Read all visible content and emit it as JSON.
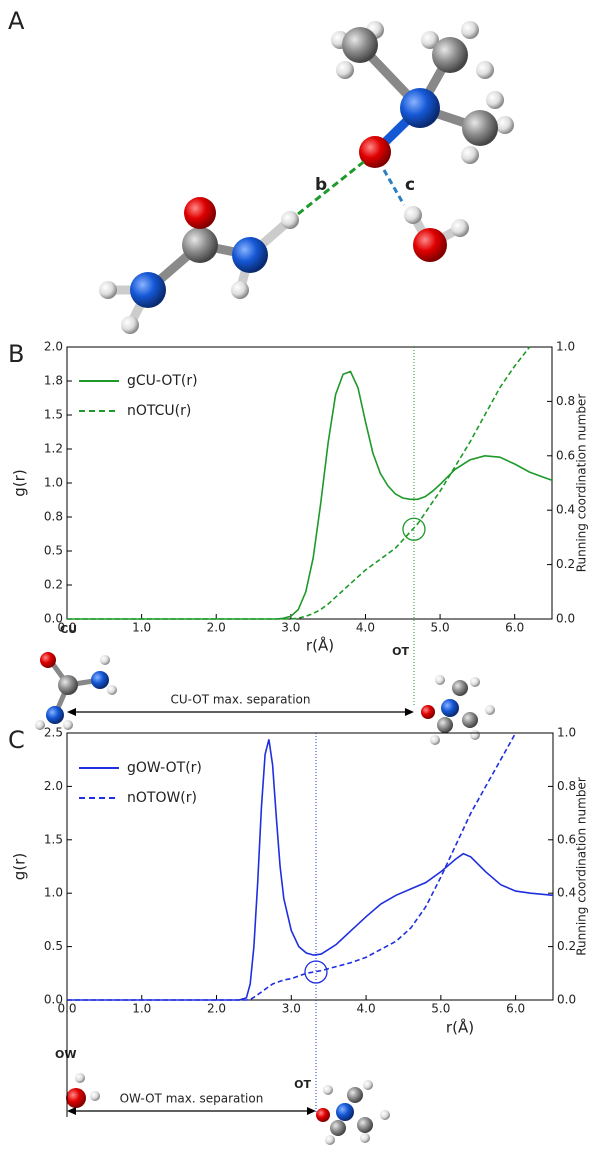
{
  "panel_a": {
    "label": "A",
    "bond_labels": [
      "b",
      "c"
    ]
  },
  "chart_data": [
    {
      "type": "line",
      "panel_label": "B",
      "xlabel": "r(Å)",
      "ylabel": "g(r)",
      "y2label": "Running coordination number",
      "x": [
        0,
        1,
        2,
        2.8,
        2.9,
        3.0,
        3.1,
        3.2,
        3.3,
        3.4,
        3.5,
        3.6,
        3.7,
        3.8,
        3.9,
        4.0,
        4.1,
        4.2,
        4.3,
        4.4,
        4.5,
        4.6,
        4.7,
        4.8,
        4.9,
        5.0,
        5.2,
        5.4,
        5.6,
        5.8,
        6.0,
        6.2,
        6.4,
        6.5
      ],
      "series": [
        {
          "name": "gCU-OT(r)",
          "color": "#1e9a2a",
          "dash": false,
          "values": [
            0,
            0,
            0,
            0,
            0.005,
            0.02,
            0.07,
            0.2,
            0.45,
            0.85,
            1.3,
            1.65,
            1.8,
            1.82,
            1.7,
            1.45,
            1.22,
            1.07,
            0.98,
            0.92,
            0.89,
            0.88,
            0.88,
            0.9,
            0.94,
            0.99,
            1.1,
            1.17,
            1.2,
            1.19,
            1.14,
            1.08,
            1.04,
            1.02
          ]
        },
        {
          "name": "nOTCU(r)",
          "color": "#1e9a2a",
          "dash": true,
          "axis": "y2",
          "values": [
            0,
            0,
            0,
            0,
            0,
            0,
            0.003,
            0.01,
            0.02,
            0.035,
            0.055,
            0.08,
            0.105,
            0.13,
            0.155,
            0.18,
            0.2,
            0.22,
            0.24,
            0.26,
            0.29,
            0.32,
            0.35,
            0.39,
            0.43,
            0.47,
            0.56,
            0.65,
            0.75,
            0.85,
            0.93,
            1.0,
            null,
            null
          ]
        }
      ],
      "xlim": [
        0,
        6.5
      ],
      "xticks": [
        {
          "value": 0,
          "label": "0.0"
        },
        {
          "value": 1,
          "label": "1.0"
        },
        {
          "value": 2,
          "label": "2.0"
        },
        {
          "value": 3,
          "label": "3.0"
        },
        {
          "value": 4,
          "label": "4.0"
        },
        {
          "value": 5,
          "label": "5.0"
        },
        {
          "value": 6,
          "label": "6.0"
        }
      ],
      "ylim": [
        0,
        2
      ],
      "yticks": [
        {
          "value": 0,
          "label": "0.0"
        },
        {
          "value": 0.25,
          "label": "0.2"
        },
        {
          "value": 0.5,
          "label": "0.5"
        },
        {
          "value": 0.75,
          "label": "0.8"
        },
        {
          "value": 1,
          "label": "1.0"
        },
        {
          "value": 1.25,
          "label": "1.2"
        },
        {
          "value": 1.5,
          "label": "1.5"
        },
        {
          "value": 1.75,
          "label": "1.8"
        },
        {
          "value": 2,
          "label": "2.0"
        }
      ],
      "y2lim": [
        0,
        1
      ],
      "y2ticks": [
        {
          "value": 0,
          "label": "0.0"
        },
        0.2,
        0.4,
        0.6,
        0.8,
        {
          "value": 1,
          "label": "1.0"
        }
      ],
      "marker": {
        "x": 4.65,
        "y2": 0.33
      },
      "annotations": [
        "CU",
        "OT",
        "CU-OT max. separation"
      ]
    },
    {
      "type": "line",
      "panel_label": "C",
      "xlabel": "r(Å)",
      "ylabel": "g(r)",
      "y2label": "Running coordination number",
      "x": [
        0,
        1,
        2,
        2.3,
        2.4,
        2.45,
        2.5,
        2.55,
        2.6,
        2.65,
        2.7,
        2.75,
        2.8,
        2.85,
        2.9,
        3.0,
        3.1,
        3.2,
        3.3,
        3.4,
        3.6,
        3.8,
        4.0,
        4.2,
        4.4,
        4.6,
        4.8,
        5.0,
        5.2,
        5.3,
        5.4,
        5.6,
        5.8,
        6.0,
        6.2,
        6.5
      ],
      "series": [
        {
          "name": "gOW-OT(r)",
          "color": "#1f2fe0",
          "dash": false,
          "values": [
            0,
            0,
            0,
            0,
            0.02,
            0.15,
            0.5,
            1.1,
            1.8,
            2.3,
            2.44,
            2.2,
            1.7,
            1.25,
            0.95,
            0.65,
            0.5,
            0.44,
            0.42,
            0.43,
            0.52,
            0.65,
            0.78,
            0.9,
            0.98,
            1.04,
            1.1,
            1.2,
            1.32,
            1.37,
            1.34,
            1.2,
            1.08,
            1.02,
            1.0,
            0.98
          ]
        },
        {
          "name": "nOTOW(r)",
          "color": "#1f2fe0",
          "dash": true,
          "axis": "y2",
          "values": [
            0,
            0,
            0,
            0,
            0,
            0.002,
            0.01,
            0.02,
            0.03,
            0.04,
            0.05,
            0.06,
            0.065,
            0.07,
            0.075,
            0.08,
            0.09,
            0.1,
            0.105,
            0.11,
            0.125,
            0.14,
            0.16,
            0.19,
            0.22,
            0.27,
            0.35,
            0.46,
            0.58,
            0.64,
            0.7,
            0.8,
            0.9,
            1.0,
            null,
            null
          ]
        }
      ],
      "xlim": [
        0,
        6.5
      ],
      "xticks": [
        {
          "value": 0,
          "label": "0.0"
        },
        {
          "value": 1,
          "label": "1.0"
        },
        {
          "value": 2,
          "label": "2.0"
        },
        {
          "value": 3,
          "label": "3.0"
        },
        {
          "value": 4,
          "label": "4.0"
        },
        {
          "value": 5,
          "label": "5.0"
        },
        {
          "value": 6,
          "label": "6.0"
        }
      ],
      "ylim": [
        0,
        2.5
      ],
      "yticks": [
        {
          "value": 0,
          "label": "0.0"
        },
        0.5,
        {
          "value": 1,
          "label": "1.0"
        },
        1.5,
        {
          "value": 2,
          "label": "2.0"
        },
        2.5
      ],
      "y2lim": [
        0,
        1
      ],
      "y2ticks": [
        {
          "value": 0,
          "label": "0.0"
        },
        0.2,
        0.4,
        0.6,
        0.8,
        {
          "value": 1,
          "label": "1.0"
        }
      ],
      "marker": {
        "x": 3.33,
        "y2": 0.105
      },
      "annotations": [
        "OW",
        "OT",
        "OW-OT max. separation"
      ]
    }
  ]
}
